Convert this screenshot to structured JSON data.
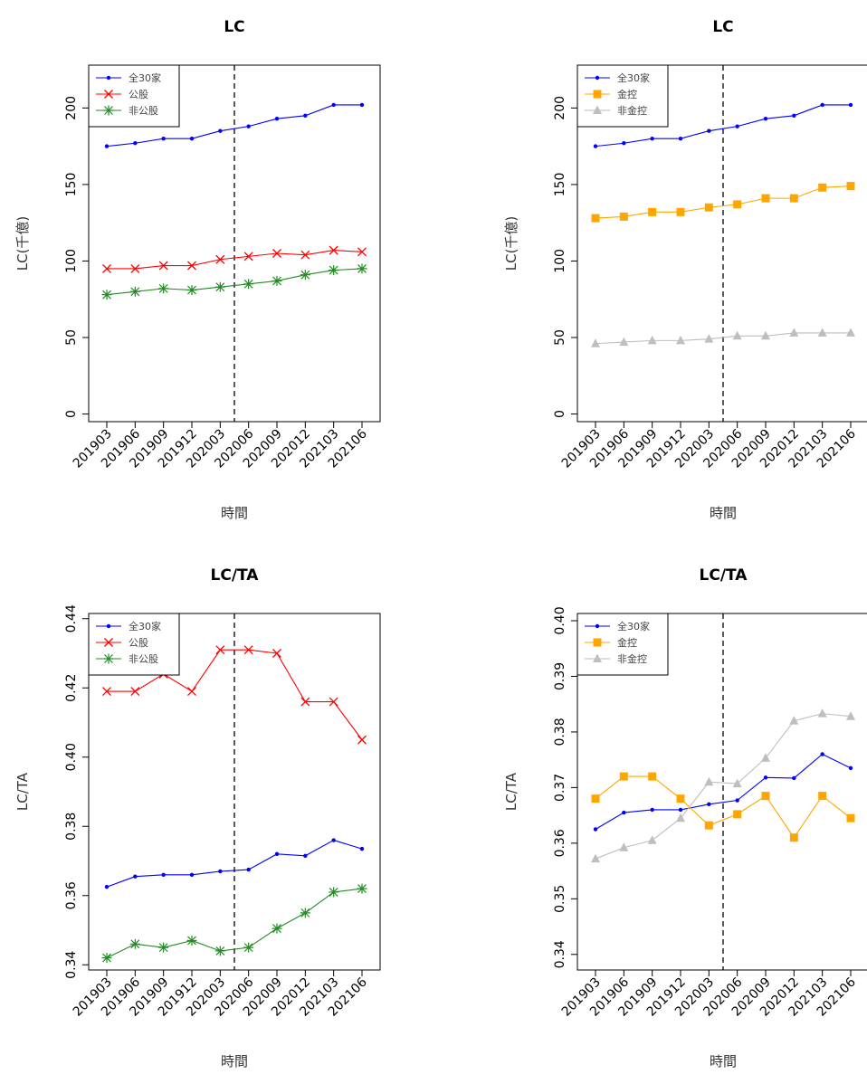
{
  "chart_data": [
    {
      "type": "line",
      "title": "LC",
      "xlabel": "時間",
      "ylabel": "LC(千億)",
      "categories": [
        "201903",
        "201906",
        "201909",
        "201912",
        "202003",
        "202006",
        "202009",
        "202012",
        "202103",
        "202106"
      ],
      "ylim": [
        -5,
        228
      ],
      "yticks": [
        "0",
        "50",
        "100",
        "150",
        "200"
      ],
      "vline_between": [
        "202003",
        "202006"
      ],
      "legend_position": "top-left",
      "grid": false,
      "series": [
        {
          "name": "全30家",
          "color": "#0000ff",
          "marker": "dot",
          "values": [
            175,
            177,
            180,
            180,
            185,
            188,
            193,
            195,
            202,
            202
          ]
        },
        {
          "name": "公股",
          "color": "#ff0000",
          "marker": "cross",
          "values": [
            95,
            95,
            97,
            97,
            101,
            103,
            105,
            104,
            107,
            106
          ]
        },
        {
          "name": "非公股",
          "color": "#228b22",
          "marker": "asterisk",
          "values": [
            78,
            80,
            82,
            81,
            83,
            85,
            87,
            91,
            94,
            95
          ]
        }
      ]
    },
    {
      "type": "line",
      "title": "LC",
      "xlabel": "時間",
      "ylabel": "LC(千億)",
      "categories": [
        "201903",
        "201906",
        "201909",
        "201912",
        "202003",
        "202006",
        "202009",
        "202012",
        "202103",
        "202106"
      ],
      "ylim": [
        -5,
        228
      ],
      "yticks": [
        "0",
        "50",
        "100",
        "150",
        "200"
      ],
      "vline_between": [
        "202003",
        "202006"
      ],
      "legend_position": "top-left",
      "grid": false,
      "series": [
        {
          "name": "全30家",
          "color": "#0000ff",
          "marker": "dot",
          "values": [
            175,
            177,
            180,
            180,
            185,
            188,
            193,
            195,
            202,
            202
          ]
        },
        {
          "name": "金控",
          "color": "#ffa500",
          "marker": "square",
          "values": [
            128,
            129,
            132,
            132,
            135,
            137,
            141,
            141,
            148,
            149
          ]
        },
        {
          "name": "非金控",
          "color": "#bebebe",
          "marker": "triangle",
          "values": [
            46,
            47,
            48,
            48,
            49,
            51,
            51,
            53,
            53,
            53
          ]
        }
      ]
    },
    {
      "type": "line",
      "title": "LC/TA",
      "xlabel": "時間",
      "ylabel": "LC/TA",
      "categories": [
        "201903",
        "201906",
        "201909",
        "201912",
        "202003",
        "202006",
        "202009",
        "202012",
        "202103",
        "202106"
      ],
      "ylim": [
        0.3385,
        0.4415
      ],
      "yticks": [
        "0.34",
        "0.36",
        "0.38",
        "0.40",
        "0.42",
        "0.44"
      ],
      "vline_between": [
        "202003",
        "202006"
      ],
      "legend_position": "top-left",
      "grid": false,
      "series": [
        {
          "name": "全30家",
          "color": "#0000ff",
          "marker": "dot",
          "values": [
            0.3625,
            0.3655,
            0.366,
            0.366,
            0.367,
            0.3675,
            0.372,
            0.3715,
            0.376,
            0.3735
          ]
        },
        {
          "name": "公股",
          "color": "#ff0000",
          "marker": "cross",
          "values": [
            0.419,
            0.419,
            0.424,
            0.419,
            0.431,
            0.431,
            0.43,
            0.416,
            0.416,
            0.405
          ]
        },
        {
          "name": "非公股",
          "color": "#228b22",
          "marker": "asterisk",
          "values": [
            0.342,
            0.346,
            0.345,
            0.347,
            0.344,
            0.345,
            0.3505,
            0.355,
            0.361,
            0.362
          ]
        }
      ]
    },
    {
      "type": "line",
      "title": "LC/TA",
      "xlabel": "時間",
      "ylabel": "LC/TA",
      "categories": [
        "201903",
        "201906",
        "201909",
        "201912",
        "202003",
        "202006",
        "202009",
        "202012",
        "202103",
        "202106"
      ],
      "ylim": [
        0.3372,
        0.4013
      ],
      "yticks": [
        "0.34",
        "0.35",
        "0.36",
        "0.37",
        "0.38",
        "0.39",
        "0.40"
      ],
      "vline_between": [
        "202003",
        "202006"
      ],
      "legend_position": "top-left",
      "grid": false,
      "series": [
        {
          "name": "全30家",
          "color": "#0000ff",
          "marker": "dot",
          "values": [
            0.3625,
            0.3655,
            0.366,
            0.366,
            0.367,
            0.3677,
            0.3718,
            0.3717,
            0.376,
            0.3735
          ]
        },
        {
          "name": "金控",
          "color": "#ffa500",
          "marker": "square",
          "values": [
            0.368,
            0.372,
            0.372,
            0.368,
            0.3632,
            0.3652,
            0.3685,
            0.361,
            0.3685,
            0.3645
          ]
        },
        {
          "name": "非金控",
          "color": "#bebebe",
          "marker": "triangle",
          "values": [
            0.3572,
            0.3592,
            0.3605,
            0.3645,
            0.371,
            0.3707,
            0.3753,
            0.382,
            0.3833,
            0.3828
          ]
        }
      ]
    }
  ]
}
